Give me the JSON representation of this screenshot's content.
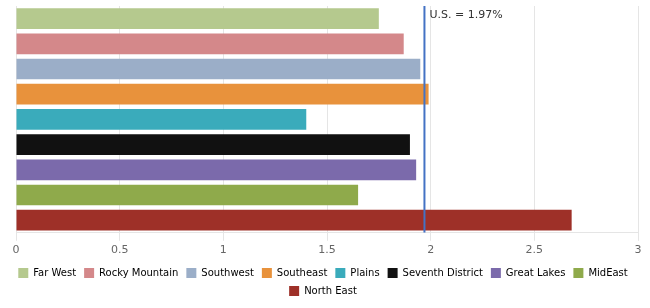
{
  "chart_data": {
    "type": "bar",
    "orientation": "horizontal",
    "categories": [
      "Far West",
      "Rocky Mountain",
      "Southwest",
      "Southeast",
      "Plains",
      "Seventh District",
      "Great Lakes",
      "MidEast",
      "North East"
    ],
    "values": [
      1.75,
      1.87,
      1.95,
      1.99,
      1.4,
      1.9,
      1.93,
      1.65,
      2.68
    ],
    "colors": [
      "#b5c98e",
      "#d4888a",
      "#9baec8",
      "#e8923c",
      "#3aabbb",
      "#111111",
      "#7b6aab",
      "#8faa4b",
      "#9e3028"
    ],
    "xlim": [
      0,
      3
    ],
    "xticks": [
      0,
      0.5,
      1,
      1.5,
      2,
      2.5,
      3
    ],
    "grid": true,
    "legend": "bottom",
    "tick_labels": "x",
    "annotations": [
      {
        "text": "U.S. = 1.97%",
        "x": 1.97,
        "color": "#4472c4"
      }
    ]
  }
}
